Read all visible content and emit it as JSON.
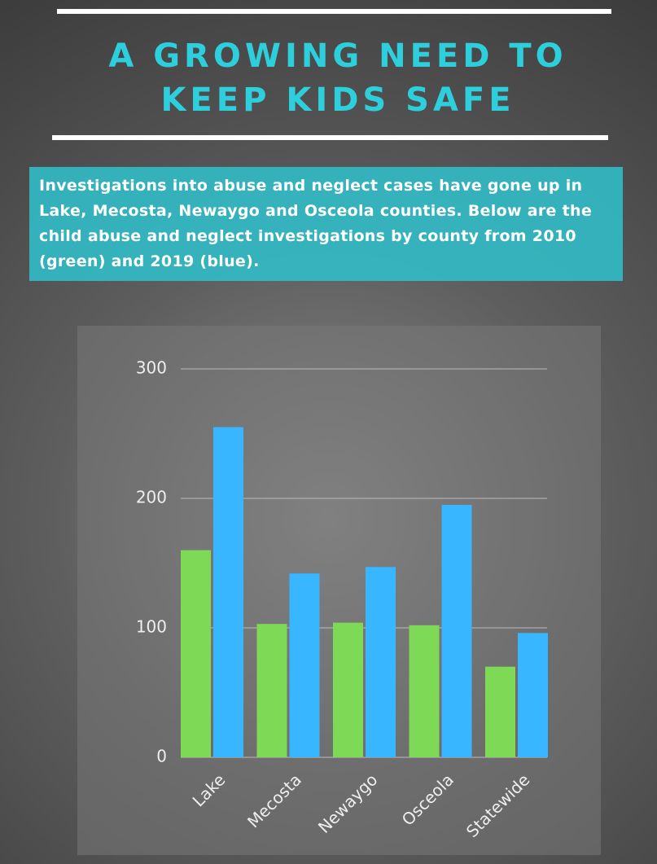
{
  "chart_data": {
    "type": "bar",
    "title": "A GROWING NEED TO KEEP KIDS SAFE",
    "subtitle": "Investigations into abuse and neglect cases have gone up in Lake, Mecosta, Newaygo and Osceola counties. Below are the child abuse and neglect investigations by county from 2010 (green) and 2019 (blue).",
    "categories": [
      "Lake",
      "Mecosta",
      "Newaygo",
      "Osceola",
      "Statewide"
    ],
    "series": [
      {
        "color": "#7ed957",
        "values": [
          160,
          103,
          104,
          102,
          70
        ]
      },
      {
        "color": "#38b6ff",
        "values": [
          255,
          142,
          147,
          195,
          96
        ]
      }
    ],
    "ylim": [
      0,
      300
    ],
    "yticks": [
      0,
      100,
      200,
      300
    ],
    "grid": true
  }
}
